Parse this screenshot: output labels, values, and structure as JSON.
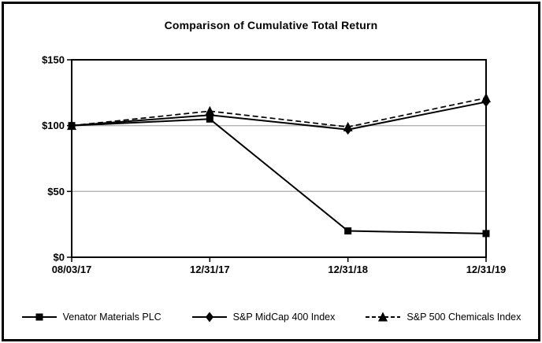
{
  "chart_data": {
    "type": "line",
    "title": "Comparison of Cumulative Total Return",
    "categories": [
      "08/03/17",
      "12/31/17",
      "12/31/18",
      "12/31/19"
    ],
    "series": [
      {
        "name": "Venator Materials PLC",
        "marker": "square",
        "line_style": "solid",
        "values": [
          100,
          105,
          20,
          18
        ]
      },
      {
        "name": "S&P MidCap 400 Index",
        "marker": "diamond",
        "line_style": "solid",
        "values": [
          100,
          108,
          97,
          118
        ]
      },
      {
        "name": "S&P 500 Chemicals Index",
        "marker": "triangle",
        "line_style": "dashed",
        "values": [
          100,
          111,
          99,
          121
        ]
      }
    ],
    "ylim": [
      0,
      150
    ],
    "yticks": [
      {
        "value": 0,
        "label": "$0"
      },
      {
        "value": 50,
        "label": "$50"
      },
      {
        "value": 100,
        "label": "$100"
      },
      {
        "value": 150,
        "label": "$150"
      }
    ],
    "gridlines": [
      50,
      100
    ],
    "legend_position": "bottom",
    "colors": {
      "line": "#000000",
      "grid": "#b3b3b3",
      "background": "#ffffff",
      "frame": "#000000"
    }
  }
}
